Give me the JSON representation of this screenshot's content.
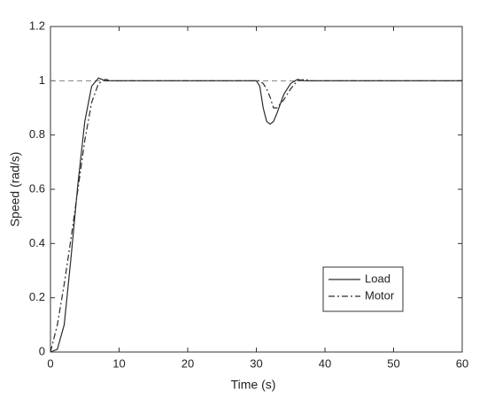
{
  "chart_data": {
    "type": "line",
    "xlabel": "Time (s)",
    "ylabel": "Speed (rad/s)",
    "x": [
      0,
      1,
      2,
      3,
      4,
      5,
      6,
      7,
      8,
      9,
      10,
      30,
      30.5,
      31,
      31.5,
      32,
      32.5,
      33,
      34,
      35,
      36,
      37,
      38,
      60
    ],
    "series": [
      {
        "name": "Load",
        "color": "#2b2b2b",
        "dash": "solid",
        "values": [
          0,
          0.01,
          0.1,
          0.35,
          0.62,
          0.85,
          0.98,
          1.01,
          1.0,
          1.0,
          1.0,
          1.0,
          0.98,
          0.9,
          0.85,
          0.84,
          0.85,
          0.88,
          0.95,
          0.99,
          1.005,
          1.0,
          1.0,
          1.0
        ]
      },
      {
        "name": "Motor",
        "color": "#2b2b2b",
        "dash": "dashdot",
        "values": [
          0,
          0.1,
          0.25,
          0.42,
          0.6,
          0.78,
          0.92,
          0.99,
          1.005,
          1.0,
          1.0,
          1.0,
          1.0,
          0.99,
          0.97,
          0.94,
          0.9,
          0.9,
          0.93,
          0.97,
          1.0,
          1.005,
          1.0,
          1.0
        ]
      }
    ],
    "reference_line": {
      "value": 1,
      "color": "#808080"
    },
    "xlim": [
      0,
      60
    ],
    "xticks": [
      0,
      10,
      20,
      30,
      40,
      50,
      60
    ],
    "ylim": [
      0,
      1.2
    ],
    "yticks": [
      0,
      0.2,
      0.4,
      0.6,
      0.8,
      1,
      1.2
    ],
    "grid": false,
    "legend": "lower right"
  }
}
